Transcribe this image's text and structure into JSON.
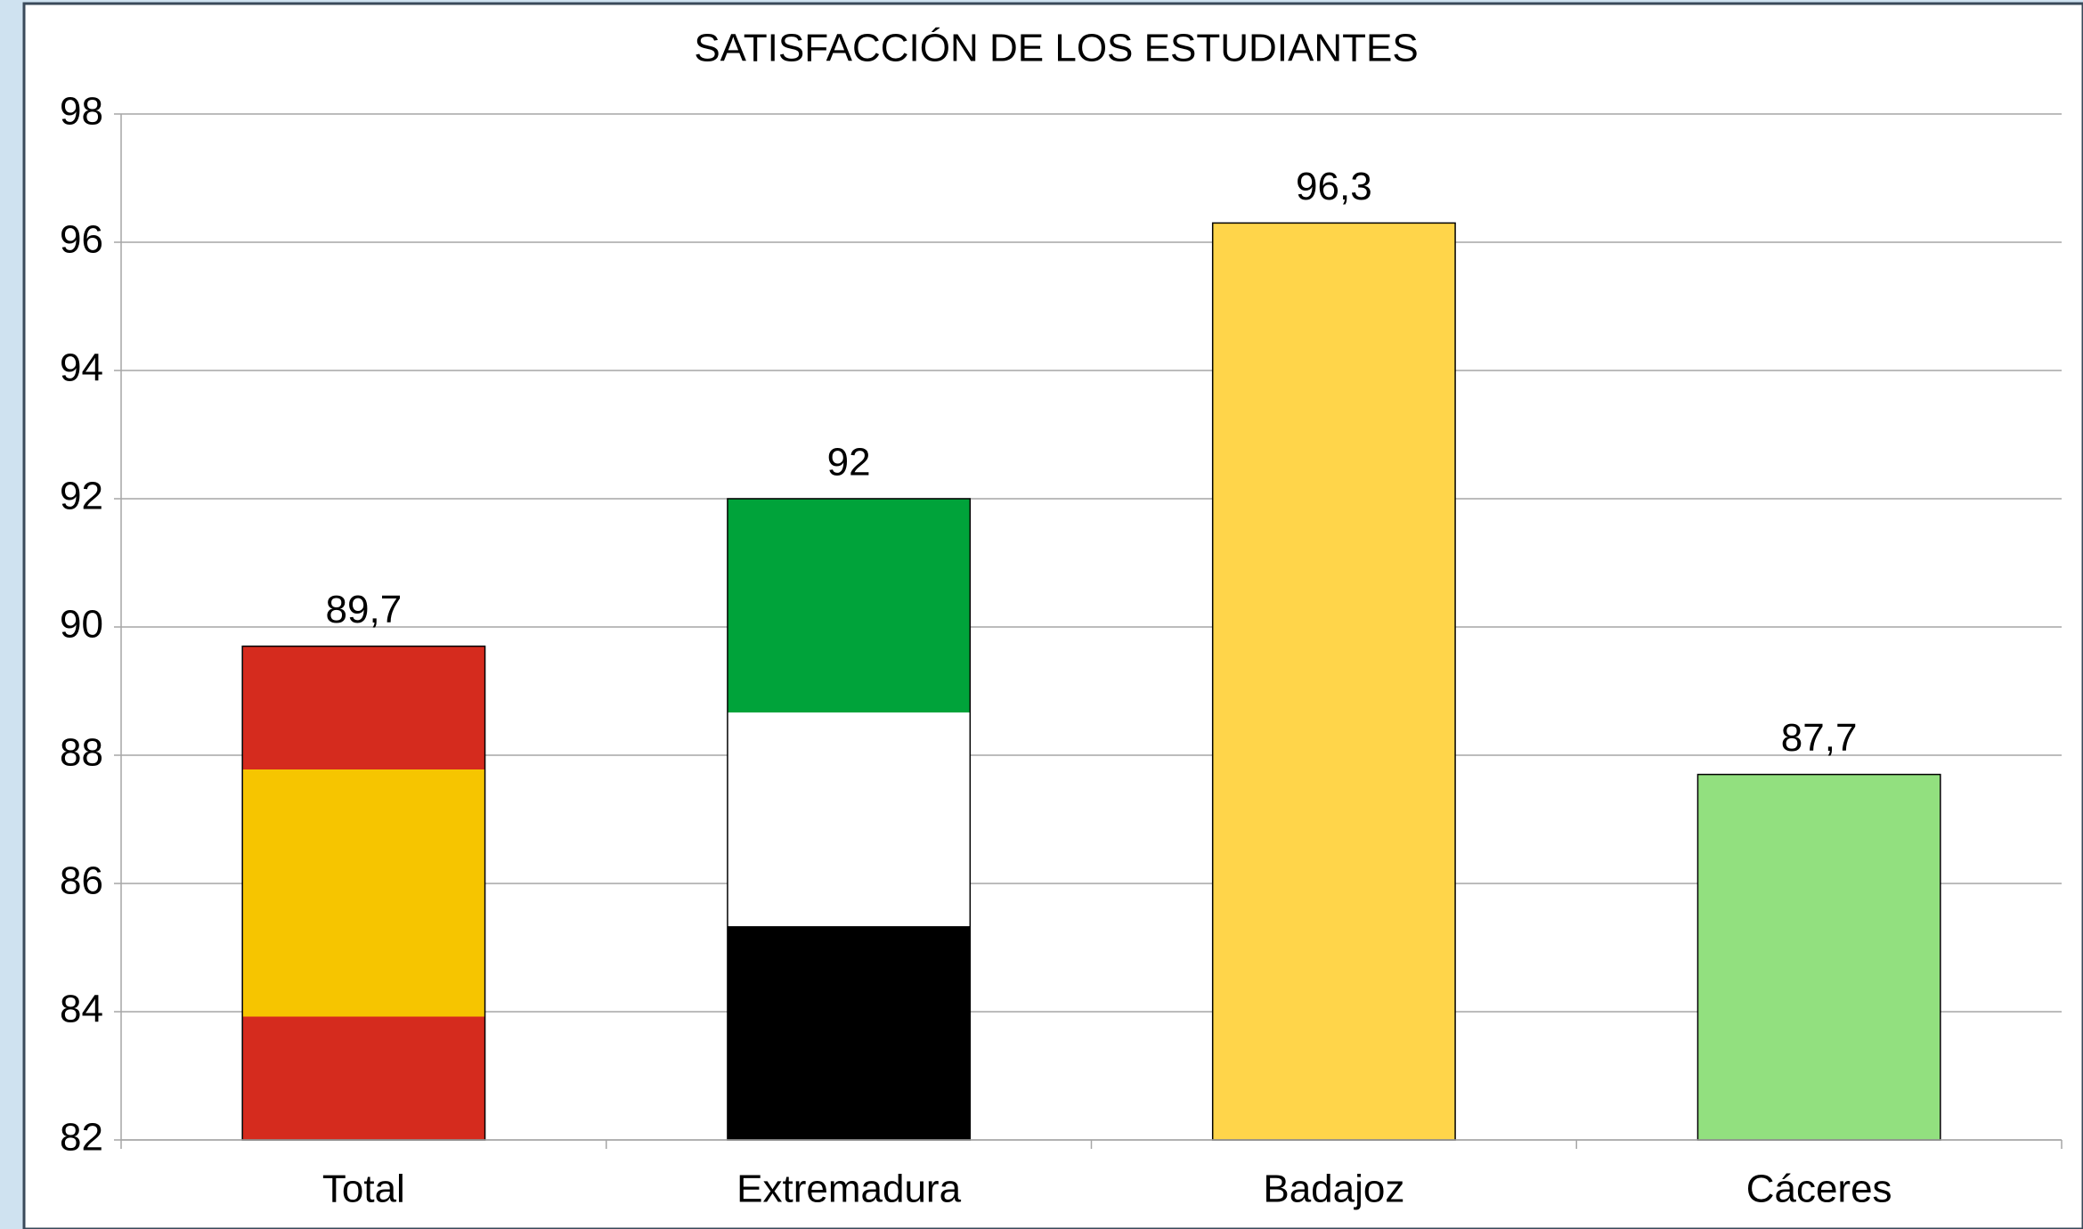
{
  "chart_data": {
    "type": "bar",
    "title": "SATISFACCIÓN DE LOS ESTUDIANTES",
    "categories": [
      "Total",
      "Extremadura",
      "Badajoz",
      "Cáceres"
    ],
    "values": [
      89.7,
      92,
      96.3,
      87.7
    ],
    "value_labels": [
      "89,7",
      "92",
      "96,3",
      "87,7"
    ],
    "colors": [
      [
        "#d52b1e",
        "#f6c500",
        "#f6c500",
        "#d52b1e"
      ],
      [
        "#00a33a",
        "#ffffff",
        "#000000"
      ],
      "#ffd54a",
      "#92e07f"
    ],
    "ylim": [
      82,
      98
    ],
    "yticks": [
      82,
      84,
      86,
      88,
      90,
      92,
      94,
      96,
      98
    ],
    "grid": true
  }
}
